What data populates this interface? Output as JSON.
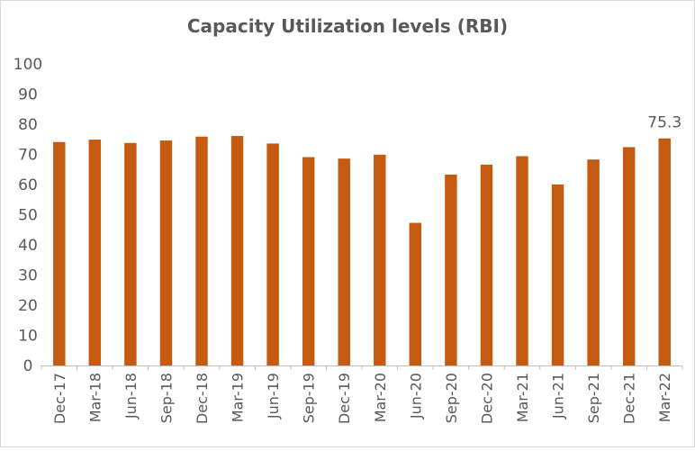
{
  "chart_data": {
    "type": "bar",
    "title": "Capacity Utilization levels (RBI)",
    "xlabel": "",
    "ylabel": "",
    "categories": [
      "Dec-17",
      "Mar-18",
      "Jun-18",
      "Sep-18",
      "Dec-18",
      "Mar-19",
      "Jun-19",
      "Sep-19",
      "Dec-19",
      "Mar-20",
      "Jun-20",
      "Sep-20",
      "Dec-20",
      "Mar-21",
      "Jun-21",
      "Sep-21",
      "Dec-21",
      "Mar-22"
    ],
    "values": [
      74.1,
      74.9,
      73.8,
      74.6,
      75.9,
      76.1,
      73.6,
      69.1,
      68.6,
      69.9,
      47.3,
      63.3,
      66.6,
      69.4,
      60.0,
      68.3,
      72.4,
      75.3
    ],
    "ylim": [
      0,
      100
    ],
    "yticks": [
      0,
      10,
      20,
      30,
      40,
      50,
      60,
      70,
      80,
      90,
      100
    ],
    "data_labels": [
      {
        "index": 17,
        "text": "75.3"
      }
    ],
    "grid": false,
    "legend": "none",
    "bar_color": "#c55a11"
  }
}
